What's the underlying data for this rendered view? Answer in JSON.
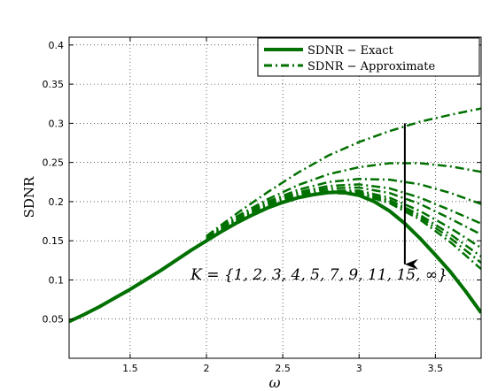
{
  "chart_data": {
    "type": "line",
    "xlabel": "ω",
    "ylabel": "SDNR",
    "xlim": [
      1.1,
      3.8
    ],
    "ylim": [
      0.0,
      0.41
    ],
    "xticks": [
      1.5,
      2,
      2.5,
      3,
      3.5
    ],
    "xtick_labels": [
      "1.5",
      "2",
      "2.5",
      "3",
      "3.5"
    ],
    "yticks": [
      0.05,
      0.1,
      0.15,
      0.2,
      0.25,
      0.3,
      0.35,
      0.4
    ],
    "ytick_labels": [
      "0.05",
      "0.1",
      "0.15",
      "0.2",
      "0.25",
      "0.3",
      "0.35",
      "0.4"
    ],
    "grid": true,
    "legend_position": "top-right",
    "legend": [
      {
        "label": "SDNR − Exact",
        "style": "solid"
      },
      {
        "label": "SDNR − Approximate",
        "style": "dashdot"
      }
    ],
    "color": "#007000",
    "annotation": {
      "text": "K = {1, 2, 3, 4, 5, 7, 9, 11, 15, ∞}",
      "arrow_x": 3.3,
      "arrow_from_y": 0.3,
      "arrow_to_y": 0.12
    },
    "exact": {
      "x": [
        1.1,
        1.2,
        1.3,
        1.4,
        1.5,
        1.6,
        1.7,
        1.8,
        1.9,
        2.0,
        2.1,
        2.2,
        2.3,
        2.4,
        2.5,
        2.6,
        2.7,
        2.8,
        2.85,
        2.9,
        3.0,
        3.1,
        3.2,
        3.3,
        3.4,
        3.5,
        3.6,
        3.7,
        3.8
      ],
      "y": [
        0.047,
        0.056,
        0.066,
        0.077,
        0.088,
        0.1,
        0.112,
        0.125,
        0.138,
        0.15,
        0.162,
        0.173,
        0.183,
        0.192,
        0.199,
        0.205,
        0.209,
        0.2115,
        0.212,
        0.2115,
        0.208,
        0.2,
        0.188,
        0.172,
        0.153,
        0.132,
        0.11,
        0.085,
        0.058
      ]
    },
    "approximate": [
      {
        "x": [
          2.0,
          2.2,
          2.4,
          2.6,
          2.8,
          3.0,
          3.2,
          3.4,
          3.6,
          3.8
        ],
        "y": [
          0.156,
          0.185,
          0.212,
          0.237,
          0.259,
          0.276,
          0.29,
          0.302,
          0.311,
          0.319
        ]
      },
      {
        "x": [
          2.0,
          2.2,
          2.4,
          2.6,
          2.8,
          3.0,
          3.2,
          3.4,
          3.6,
          3.8
        ],
        "y": [
          0.155,
          0.181,
          0.203,
          0.221,
          0.235,
          0.244,
          0.249,
          0.249,
          0.245,
          0.238
        ]
      },
      {
        "x": [
          2.0,
          2.2,
          2.4,
          2.6,
          2.8,
          3.0,
          3.2,
          3.4,
          3.6,
          3.8
        ],
        "y": [
          0.154,
          0.179,
          0.2,
          0.215,
          0.225,
          0.229,
          0.228,
          0.222,
          0.211,
          0.197
        ]
      },
      {
        "x": [
          2.0,
          2.2,
          2.4,
          2.6,
          2.8,
          3.0,
          3.2,
          3.4,
          3.6,
          3.8
        ],
        "y": [
          0.153,
          0.178,
          0.198,
          0.212,
          0.22,
          0.222,
          0.217,
          0.205,
          0.189,
          0.172
        ]
      },
      {
        "x": [
          2.0,
          2.2,
          2.4,
          2.6,
          2.8,
          3.0,
          3.2,
          3.4,
          3.6,
          3.8
        ],
        "y": [
          0.152,
          0.177,
          0.197,
          0.21,
          0.217,
          0.218,
          0.211,
          0.197,
          0.178,
          0.158
        ]
      },
      {
        "x": [
          2.0,
          2.2,
          2.4,
          2.6,
          2.8,
          3.0,
          3.2,
          3.4,
          3.6,
          3.8
        ],
        "y": [
          0.151,
          0.176,
          0.195,
          0.208,
          0.214,
          0.214,
          0.205,
          0.188,
          0.166,
          0.141
        ]
      },
      {
        "x": [
          2.0,
          2.2,
          2.4,
          2.6,
          2.8,
          3.0,
          3.2,
          3.4,
          3.6,
          3.8
        ],
        "y": [
          0.151,
          0.175,
          0.194,
          0.207,
          0.213,
          0.212,
          0.202,
          0.183,
          0.158,
          0.13
        ]
      },
      {
        "x": [
          2.0,
          2.2,
          2.4,
          2.6,
          2.8,
          3.0,
          3.2,
          3.4,
          3.6,
          3.8
        ],
        "y": [
          0.15,
          0.174,
          0.193,
          0.206,
          0.212,
          0.211,
          0.2,
          0.18,
          0.153,
          0.122
        ]
      },
      {
        "x": [
          2.0,
          2.2,
          2.4,
          2.6,
          2.8,
          3.0,
          3.2,
          3.4,
          3.6,
          3.8
        ],
        "y": [
          0.15,
          0.174,
          0.193,
          0.205,
          0.211,
          0.21,
          0.198,
          0.177,
          0.148,
          0.114
        ]
      }
    ]
  }
}
